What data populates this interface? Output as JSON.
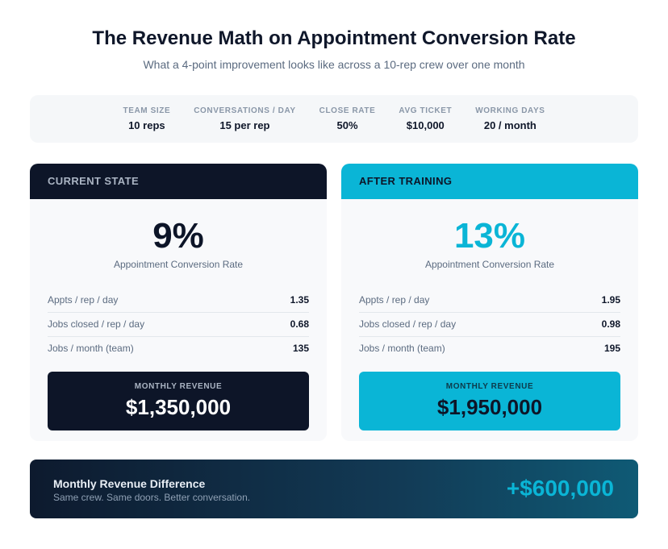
{
  "header": {
    "title": "The Revenue Math on Appointment Conversion Rate",
    "subtitle": "What a 4-point improvement looks like across a 10-rep crew over one month"
  },
  "assumptions": [
    {
      "label": "TEAM SIZE",
      "value": "10 reps"
    },
    {
      "label": "CONVERSATIONS / DAY",
      "value": "15 per rep"
    },
    {
      "label": "CLOSE RATE",
      "value": "50%"
    },
    {
      "label": "AVG TICKET",
      "value": "$10,000"
    },
    {
      "label": "WORKING DAYS",
      "value": "20 / month"
    }
  ],
  "cards": [
    {
      "heading": "CURRENT STATE",
      "rate": "9%",
      "rate_label": "Appointment Conversion Rate",
      "rows": [
        {
          "label": "Appts / rep / day",
          "value": "1.35"
        },
        {
          "label": "Jobs closed / rep / day",
          "value": "0.68"
        },
        {
          "label": "Jobs / month (team)",
          "value": "135"
        }
      ],
      "revenue_label": "MONTHLY REVENUE",
      "revenue": "$1,350,000"
    },
    {
      "heading": "AFTER TRAINING",
      "rate": "13%",
      "rate_label": "Appointment Conversion Rate",
      "rows": [
        {
          "label": "Appts / rep / day",
          "value": "1.95"
        },
        {
          "label": "Jobs closed / rep / day",
          "value": "0.98"
        },
        {
          "label": "Jobs / month (team)",
          "value": "195"
        }
      ],
      "revenue_label": "MONTHLY REVENUE",
      "revenue": "$1,950,000"
    }
  ],
  "difference": {
    "title": "Monthly Revenue Difference",
    "subtitle": "Same crew. Same doors. Better conversation.",
    "value": "+$600,000"
  }
}
